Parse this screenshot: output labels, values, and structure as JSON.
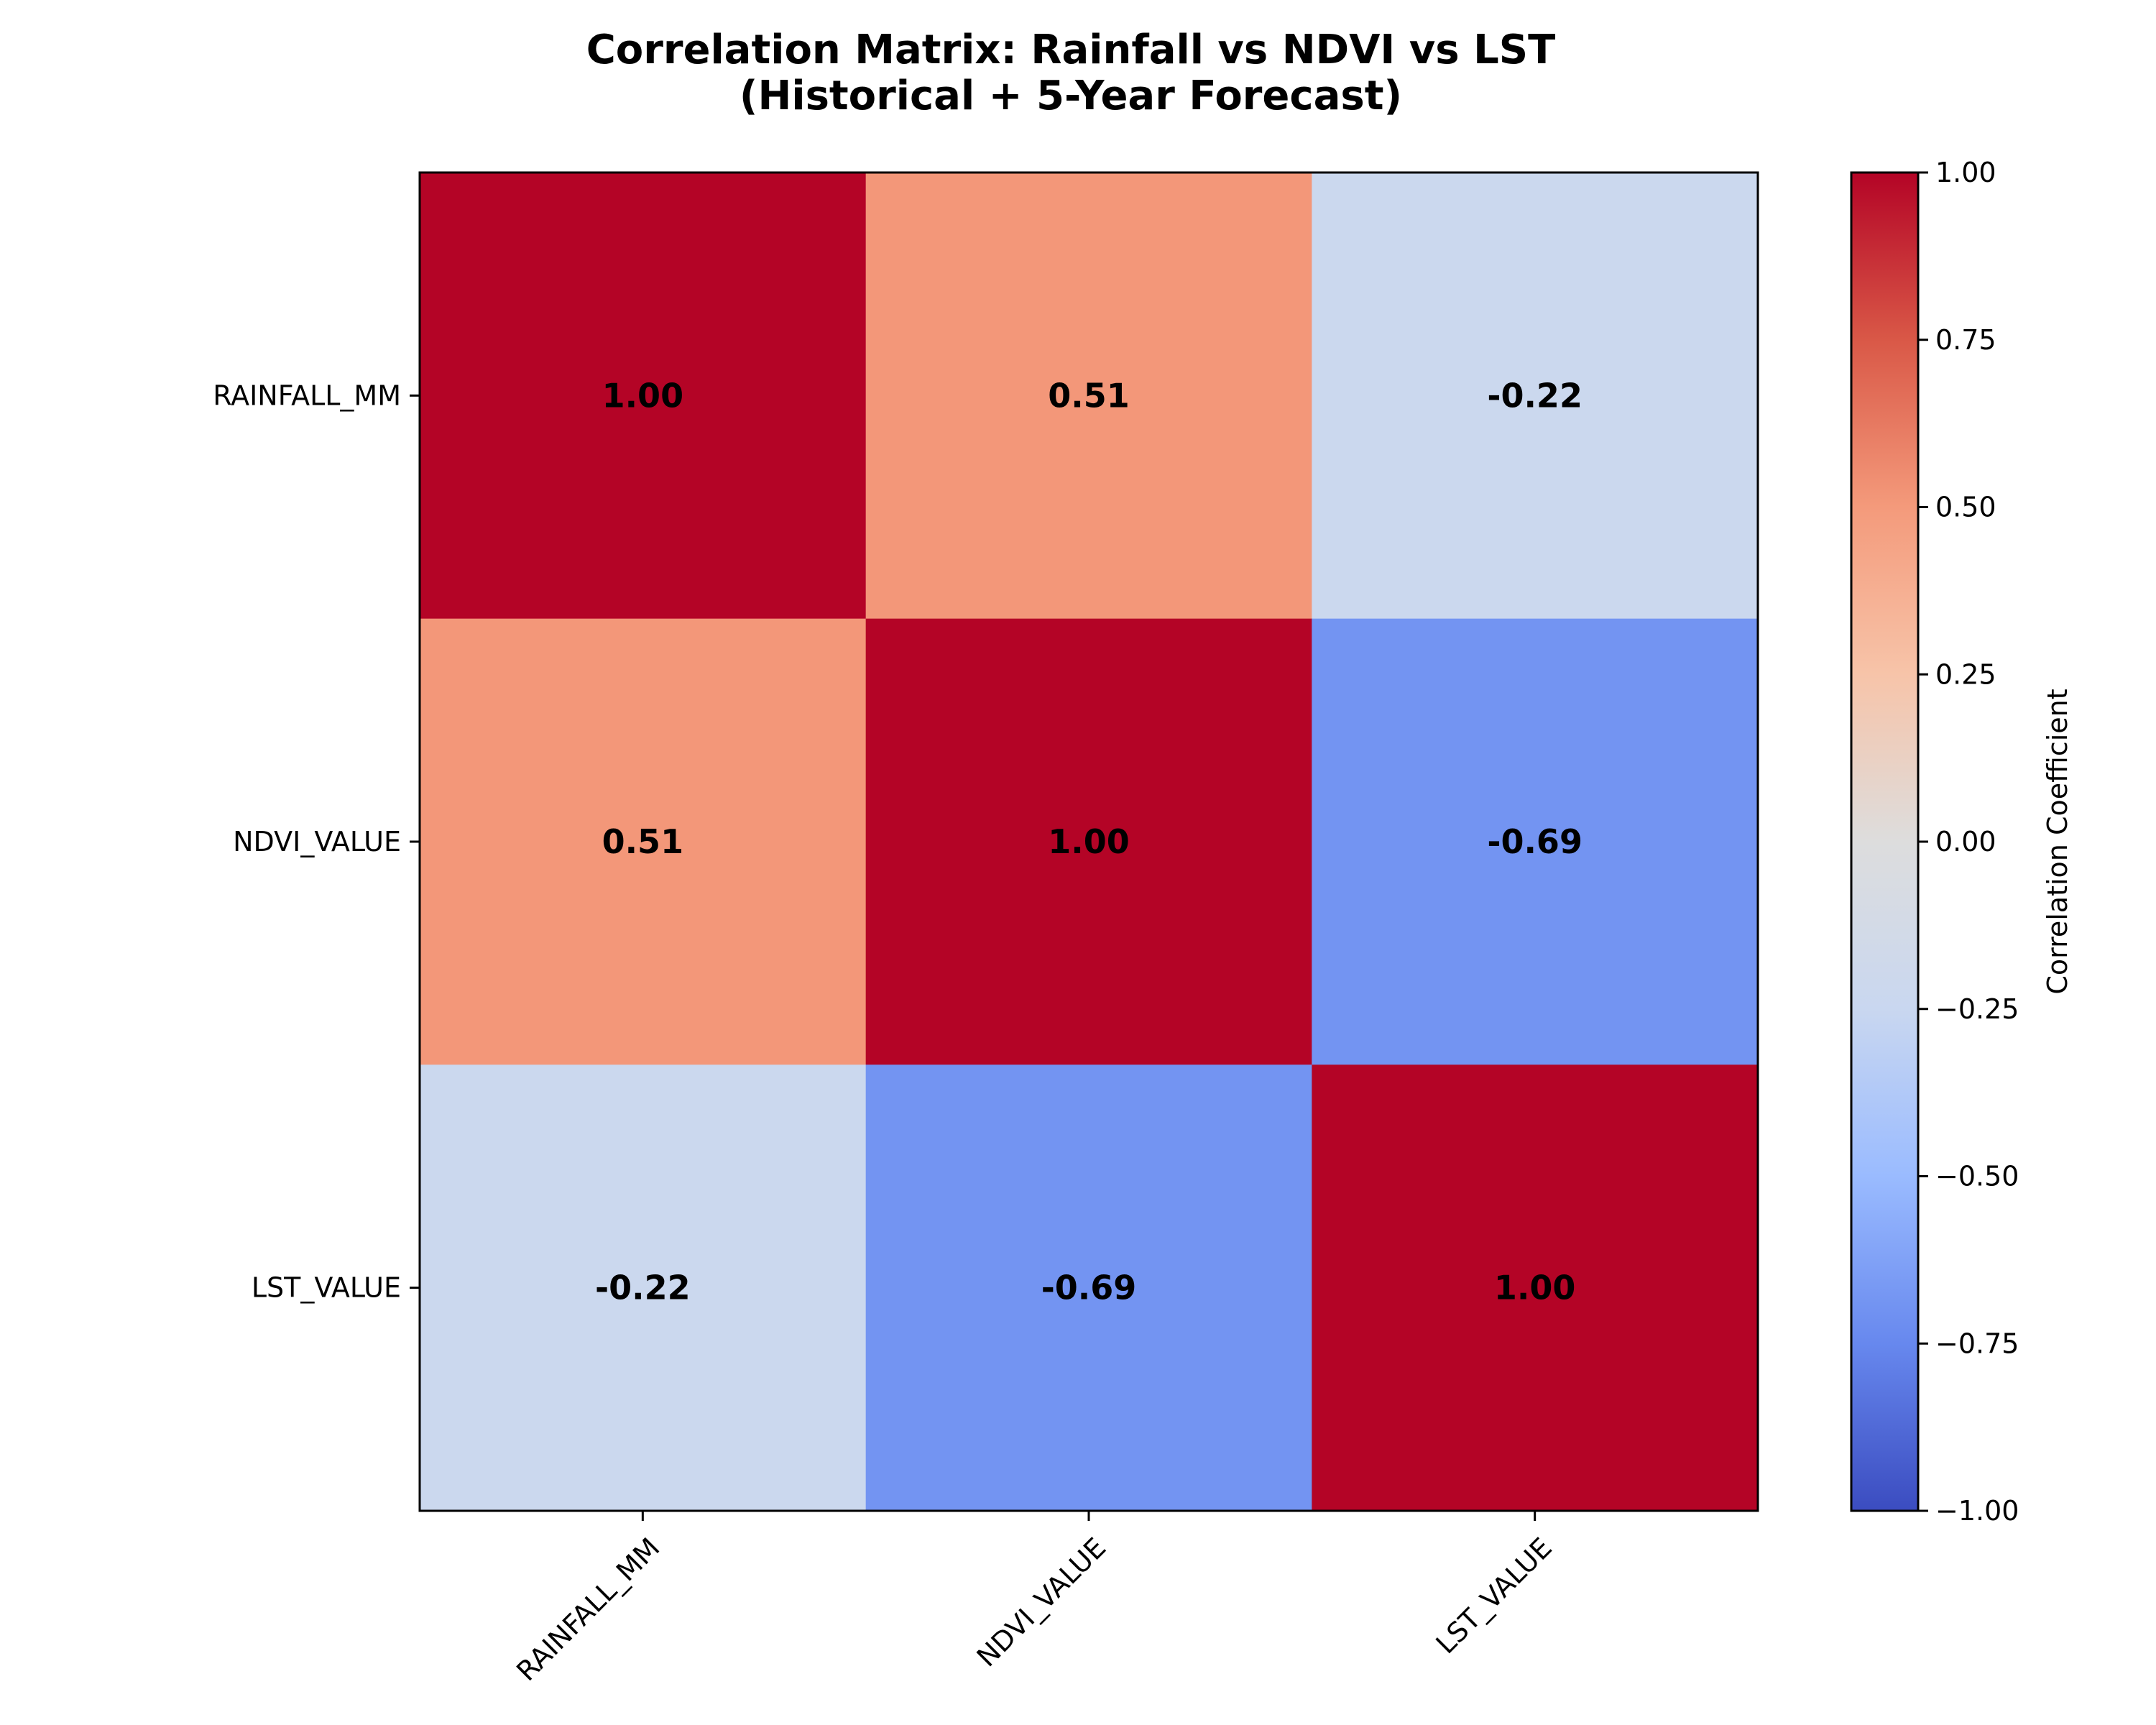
{
  "chart_data": {
    "type": "heatmap",
    "title_lines": [
      "Correlation Matrix: Rainfall vs NDVI vs LST",
      "(Historical + 5-Year Forecast)"
    ],
    "x_categories": [
      "RAINFALL_MM",
      "NDVI_VALUE",
      "LST_VALUE"
    ],
    "y_categories": [
      "RAINFALL_MM",
      "NDVI_VALUE",
      "LST_VALUE"
    ],
    "values": [
      [
        1.0,
        0.51,
        -0.22
      ],
      [
        0.51,
        1.0,
        -0.69
      ],
      [
        -0.22,
        -0.69,
        1.0
      ]
    ],
    "value_labels": [
      [
        "1.00",
        "0.51",
        "-0.22"
      ],
      [
        "0.51",
        "1.00",
        "-0.69"
      ],
      [
        "-0.22",
        "-0.69",
        "1.00"
      ]
    ],
    "colorbar": {
      "label": "Correlation Coefficient",
      "range": [
        -1.0,
        1.0
      ],
      "ticks": [
        1.0,
        0.75,
        0.5,
        0.25,
        0.0,
        -0.25,
        -0.5,
        -0.75,
        -1.0
      ],
      "tick_labels": [
        "1.00",
        "0.75",
        "0.50",
        "0.25",
        "0.00",
        "−0.25",
        "−0.50",
        "−0.75",
        "−1.00"
      ],
      "colormap": "coolwarm"
    },
    "xlabel": "",
    "ylabel": "",
    "grid": false
  },
  "colors": {
    "coolwarm_stops": [
      "#3b4cc0",
      "#6788ee",
      "#9abbff",
      "#c9d7f0",
      "#dddddd",
      "#f7c4a9",
      "#f49a7b",
      "#d95847",
      "#b40426"
    ]
  }
}
